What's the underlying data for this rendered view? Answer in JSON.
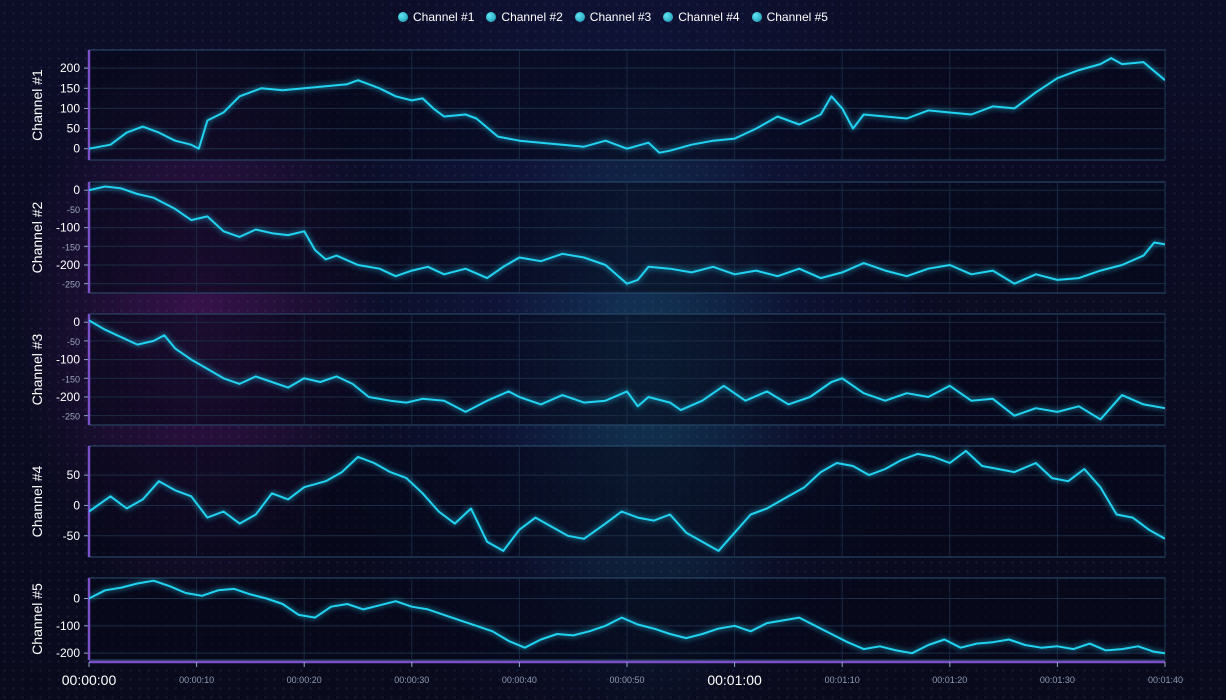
{
  "legend": [
    {
      "label": "Channel #1"
    },
    {
      "label": "Channel #2"
    },
    {
      "label": "Channel #3"
    },
    {
      "label": "Channel #4"
    },
    {
      "label": "Channel #5"
    }
  ],
  "colors": {
    "series": "#21d3f0",
    "panel_border": "#2b4f6f",
    "grid": "#1d3048",
    "axis_accent": "#7a4fc8"
  },
  "chart_data": {
    "type": "line",
    "x_unit": "seconds",
    "x_ticks": [
      {
        "value": 0,
        "label": "00:00:00",
        "major": true
      },
      {
        "value": 10,
        "label": "00:00:10",
        "major": false
      },
      {
        "value": 20,
        "label": "00:00:20",
        "major": false
      },
      {
        "value": 30,
        "label": "00:00:30",
        "major": false
      },
      {
        "value": 40,
        "label": "00:00:40",
        "major": false
      },
      {
        "value": 50,
        "label": "00:00:50",
        "major": false
      },
      {
        "value": 60,
        "label": "00:01:00",
        "major": true
      },
      {
        "value": 70,
        "label": "00:01:10",
        "major": false
      },
      {
        "value": 80,
        "label": "00:01:20",
        "major": false
      },
      {
        "value": 90,
        "label": "00:01:30",
        "major": false
      },
      {
        "value": 100,
        "label": "00:01:40",
        "major": false
      }
    ],
    "xlim": [
      0,
      100
    ],
    "channels": [
      {
        "ylabel": "Channel #1",
        "ylim": [
          -28,
          245
        ],
        "y_ticks": [
          {
            "value": 0,
            "label": "0",
            "major": true
          },
          {
            "value": 50,
            "label": "50",
            "major": true
          },
          {
            "value": 100,
            "label": "100",
            "major": true
          },
          {
            "value": 150,
            "label": "150",
            "major": true
          },
          {
            "value": 200,
            "label": "200",
            "major": true
          }
        ],
        "x": [
          0,
          2,
          3.5,
          5,
          6.5,
          8,
          9.5,
          10.2,
          11,
          12.5,
          14,
          16,
          18,
          20,
          22,
          24,
          25,
          27,
          28.5,
          30,
          31,
          32,
          33,
          35,
          36,
          38,
          40,
          42,
          44,
          46,
          48,
          50,
          52,
          53,
          54,
          56,
          58,
          60,
          62,
          64,
          66,
          68,
          69,
          70,
          71,
          72,
          74,
          76,
          78,
          80,
          82,
          84,
          86,
          87,
          88,
          90,
          92,
          94,
          95,
          96,
          98,
          100
        ],
        "values": [
          0,
          10,
          40,
          55,
          40,
          20,
          10,
          0,
          70,
          90,
          130,
          150,
          145,
          150,
          155,
          160,
          170,
          150,
          130,
          120,
          125,
          100,
          80,
          85,
          75,
          30,
          20,
          15,
          10,
          5,
          20,
          0,
          15,
          -10,
          -5,
          10,
          20,
          25,
          50,
          80,
          60,
          85,
          130,
          100,
          50,
          85,
          80,
          75,
          95,
          90,
          85,
          105,
          100,
          120,
          140,
          175,
          195,
          210,
          225,
          210,
          215,
          170
        ]
      },
      {
        "ylabel": "Channel #2",
        "ylim": [
          -275,
          22
        ],
        "y_ticks": [
          {
            "value": 0,
            "label": "0",
            "major": true
          },
          {
            "value": -50,
            "label": "-50",
            "major": false
          },
          {
            "value": -100,
            "label": "-100",
            "major": true
          },
          {
            "value": -150,
            "label": "-150",
            "major": false
          },
          {
            "value": -200,
            "label": "-200",
            "major": true
          },
          {
            "value": -250,
            "label": "-250",
            "major": false
          }
        ],
        "x": [
          0,
          1.5,
          3,
          4.5,
          6,
          8,
          9.5,
          11,
          12.5,
          14,
          15.5,
          17,
          18.5,
          20,
          21,
          22,
          23,
          25,
          27,
          28.5,
          30,
          31.5,
          33,
          35,
          37,
          38.5,
          40,
          42,
          44,
          46,
          48,
          50,
          51,
          52,
          54,
          56,
          58,
          60,
          62,
          64,
          66,
          68,
          70,
          72,
          74,
          76,
          78,
          80,
          82,
          84,
          86,
          88,
          90,
          92,
          94,
          96,
          98,
          99,
          100
        ],
        "values": [
          0,
          10,
          5,
          -10,
          -20,
          -50,
          -80,
          -70,
          -110,
          -125,
          -105,
          -115,
          -120,
          -110,
          -160,
          -185,
          -175,
          -200,
          -210,
          -230,
          -215,
          -205,
          -225,
          -210,
          -235,
          -205,
          -180,
          -190,
          -170,
          -180,
          -200,
          -250,
          -240,
          -205,
          -210,
          -220,
          -205,
          -225,
          -215,
          -230,
          -210,
          -235,
          -220,
          -195,
          -215,
          -230,
          -210,
          -200,
          -225,
          -215,
          -250,
          -225,
          -240,
          -235,
          -215,
          -200,
          -175,
          -140,
          -145
        ]
      },
      {
        "ylabel": "Channel #3",
        "ylim": [
          -275,
          22
        ],
        "y_ticks": [
          {
            "value": 0,
            "label": "0",
            "major": true
          },
          {
            "value": -50,
            "label": "-50",
            "major": false
          },
          {
            "value": -100,
            "label": "-100",
            "major": true
          },
          {
            "value": -150,
            "label": "-150",
            "major": false
          },
          {
            "value": -200,
            "label": "-200",
            "major": true
          },
          {
            "value": -250,
            "label": "-250",
            "major": false
          }
        ],
        "x": [
          0,
          1.5,
          3,
          4.5,
          6,
          7,
          8,
          9.5,
          11,
          12.5,
          14,
          15.5,
          17,
          18.5,
          20,
          21.5,
          23,
          24.5,
          26,
          28,
          29.5,
          31,
          33,
          35,
          37,
          39,
          40,
          42,
          44,
          46,
          48,
          50,
          51,
          52,
          54,
          55,
          57,
          59,
          61,
          63,
          65,
          67,
          69,
          70,
          72,
          74,
          76,
          78,
          80,
          82,
          84,
          86,
          88,
          90,
          92,
          94,
          96,
          98,
          100
        ],
        "values": [
          5,
          -20,
          -40,
          -60,
          -50,
          -35,
          -70,
          -100,
          -125,
          -150,
          -165,
          -145,
          -160,
          -175,
          -150,
          -160,
          -145,
          -165,
          -200,
          -210,
          -215,
          -205,
          -210,
          -240,
          -210,
          -185,
          -200,
          -220,
          -195,
          -215,
          -210,
          -185,
          -225,
          -200,
          -215,
          -235,
          -210,
          -170,
          -210,
          -185,
          -220,
          -200,
          -160,
          -150,
          -190,
          -210,
          -190,
          -200,
          -170,
          -210,
          -205,
          -250,
          -230,
          -240,
          -225,
          -260,
          -195,
          -220,
          -230
        ]
      },
      {
        "ylabel": "Channel #4",
        "ylim": [
          -85,
          98
        ],
        "y_ticks": [
          {
            "value": 50,
            "label": "50",
            "major": true
          },
          {
            "value": 0,
            "label": "0",
            "major": true
          },
          {
            "value": -50,
            "label": "-50",
            "major": true
          }
        ],
        "x": [
          0,
          2,
          3.5,
          5,
          6.5,
          8,
          9.5,
          11,
          12.5,
          14,
          15.5,
          17,
          18.5,
          20,
          22,
          23.5,
          25,
          26.5,
          28,
          29.5,
          31,
          32.5,
          34,
          35.5,
          37,
          38.5,
          40,
          41.5,
          43,
          44.5,
          46,
          48,
          49.5,
          51,
          52.5,
          54,
          55.5,
          57,
          58.5,
          60,
          61.5,
          63,
          65,
          66.5,
          68,
          69.5,
          71,
          72.5,
          74,
          75.5,
          77,
          78.5,
          80,
          81.5,
          83,
          84.5,
          86,
          88,
          89.5,
          91,
          92.5,
          94,
          95.5,
          97,
          98.5,
          100
        ],
        "values": [
          -10,
          15,
          -5,
          10,
          40,
          25,
          15,
          -20,
          -10,
          -30,
          -15,
          20,
          10,
          30,
          40,
          55,
          80,
          70,
          55,
          45,
          20,
          -10,
          -30,
          -5,
          -60,
          -75,
          -40,
          -20,
          -35,
          -50,
          -55,
          -30,
          -10,
          -20,
          -25,
          -15,
          -45,
          -60,
          -75,
          -45,
          -15,
          -5,
          15,
          30,
          55,
          70,
          65,
          50,
          60,
          75,
          85,
          80,
          70,
          90,
          65,
          60,
          55,
          70,
          45,
          40,
          60,
          30,
          -15,
          -20,
          -40,
          -55
        ]
      },
      {
        "ylabel": "Channel #5",
        "ylim": [
          -225,
          75
        ],
        "y_ticks": [
          {
            "value": 0,
            "label": "0",
            "major": true
          },
          {
            "value": -100,
            "label": "-100",
            "major": true
          },
          {
            "value": -200,
            "label": "-200",
            "major": true
          }
        ],
        "x": [
          0,
          1.5,
          3,
          4.5,
          6,
          7.5,
          9,
          10.5,
          12,
          13.5,
          15,
          16.5,
          18,
          19.5,
          21,
          22.5,
          24,
          25.5,
          27,
          28.5,
          30,
          31.5,
          33,
          34.5,
          36,
          37.5,
          39,
          40.5,
          42,
          43.5,
          45,
          46.5,
          48,
          49.5,
          51,
          52.5,
          54,
          55.5,
          57,
          58.5,
          60,
          61.5,
          63,
          64.5,
          66,
          67.5,
          69,
          70.5,
          72,
          73.5,
          75,
          76.5,
          78,
          79.5,
          81,
          82.5,
          84,
          85.5,
          87,
          88.5,
          90,
          91.5,
          93,
          94.5,
          96,
          97.5,
          99,
          100
        ],
        "values": [
          0,
          30,
          40,
          55,
          65,
          45,
          20,
          10,
          30,
          35,
          15,
          0,
          -20,
          -60,
          -70,
          -30,
          -20,
          -40,
          -25,
          -10,
          -30,
          -40,
          -60,
          -80,
          -100,
          -120,
          -155,
          -180,
          -150,
          -130,
          -135,
          -120,
          -100,
          -70,
          -95,
          -110,
          -130,
          -145,
          -130,
          -110,
          -100,
          -120,
          -90,
          -80,
          -70,
          -100,
          -130,
          -160,
          -185,
          -175,
          -190,
          -200,
          -170,
          -150,
          -180,
          -165,
          -160,
          -150,
          -170,
          -180,
          -175,
          -185,
          -165,
          -190,
          -185,
          -175,
          -195,
          -200
        ]
      }
    ]
  }
}
